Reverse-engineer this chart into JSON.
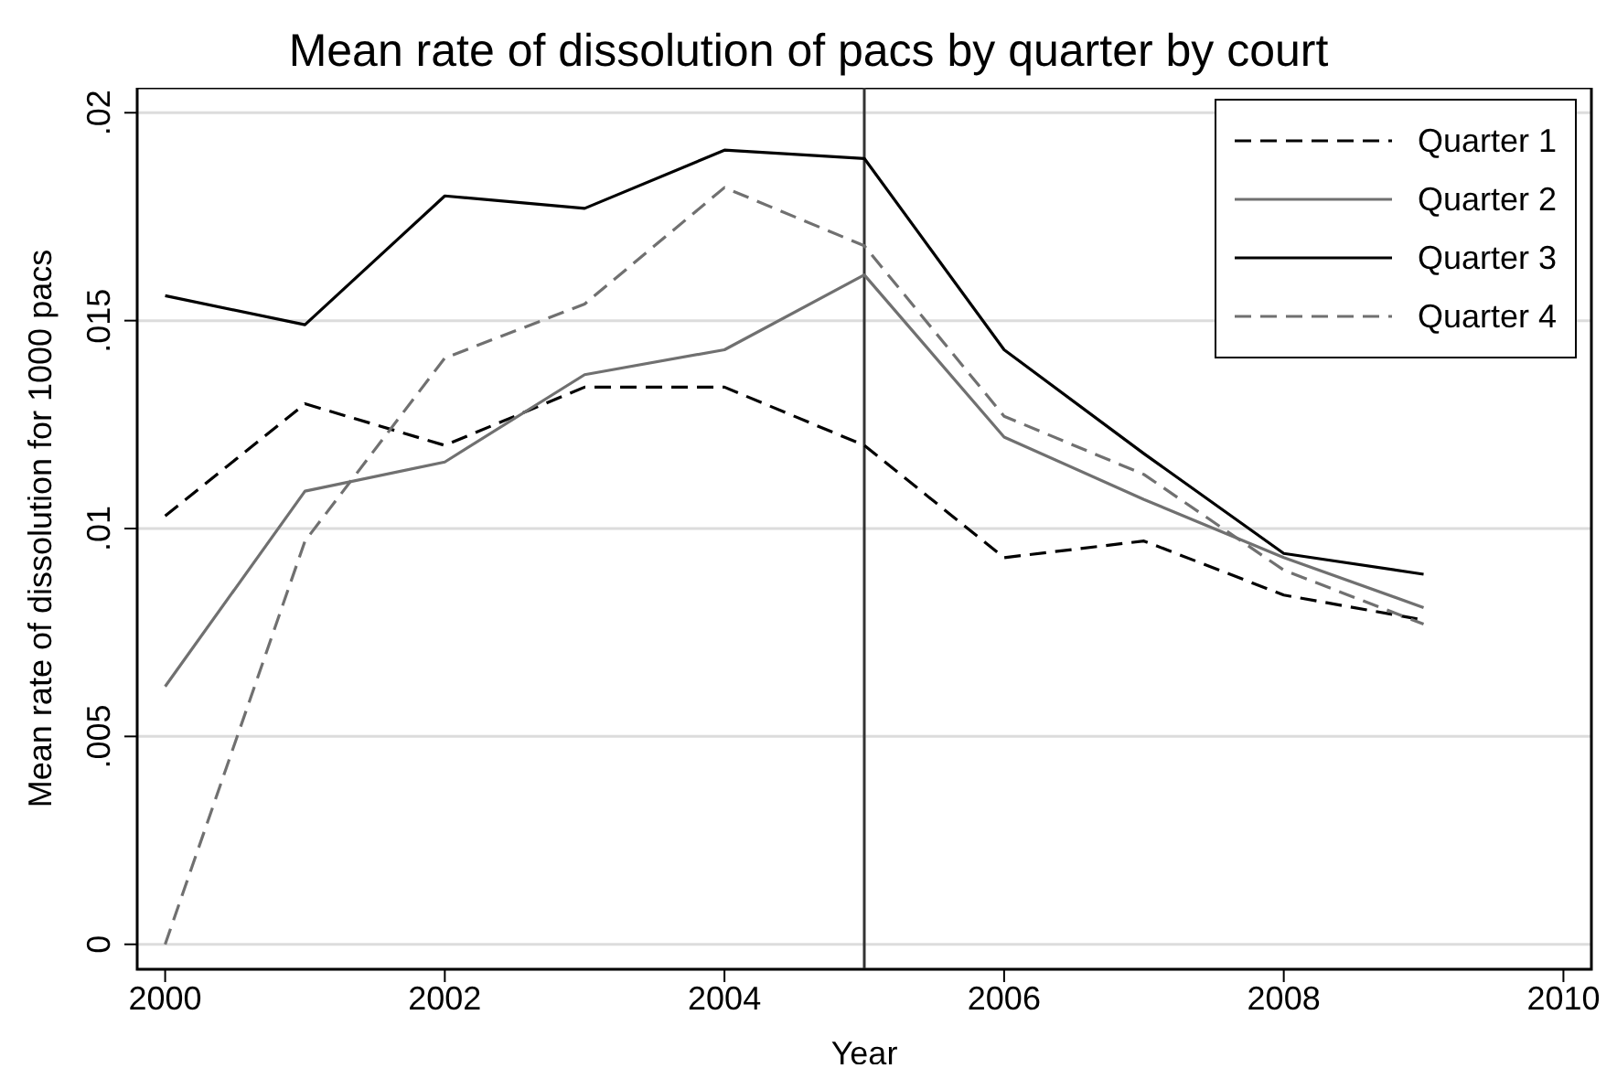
{
  "chart_data": {
    "type": "line",
    "title": "Mean rate of dissolution of pacs by quarter by court",
    "xlabel": "Year",
    "ylabel": "Mean rate of dissolution for 1000 pacs",
    "x": [
      2000,
      2001,
      2002,
      2003,
      2004,
      2005,
      2006,
      2007,
      2008,
      2009
    ],
    "series": [
      {
        "name": "Quarter 1",
        "color": "#000000",
        "line_style": "dashed",
        "values": [
          0.0103,
          0.013,
          0.012,
          0.0134,
          0.0134,
          0.012,
          0.0093,
          0.0097,
          0.0084,
          0.0078
        ]
      },
      {
        "name": "Quarter 2",
        "color": "#707070",
        "line_style": "solid",
        "values": [
          0.0062,
          0.0109,
          0.0116,
          0.0137,
          0.0143,
          0.0161,
          0.0122,
          0.0107,
          0.0093,
          0.0081
        ]
      },
      {
        "name": "Quarter 3",
        "color": "#000000",
        "line_style": "solid",
        "values": [
          0.0156,
          0.0149,
          0.018,
          0.0177,
          0.0191,
          0.0189,
          0.0143,
          0.0118,
          0.0094,
          0.0089
        ]
      },
      {
        "name": "Quarter 4",
        "color": "#707070",
        "line_style": "dashed",
        "values": [
          0,
          0.0097,
          0.0141,
          0.0154,
          0.0182,
          0.0168,
          0.0127,
          0.0113,
          0.009,
          0.0077
        ]
      }
    ],
    "xlim": [
      1999.8,
      2010.2
    ],
    "xticks": [
      2000,
      2002,
      2004,
      2006,
      2008,
      2010
    ],
    "ylim": [
      -0.0006,
      0.0206
    ],
    "yticks": [
      0,
      {
        "value": 0.005,
        "label": ".005"
      },
      {
        "value": 0.01,
        "label": ".01"
      },
      {
        "value": 0.015,
        "label": ".015"
      },
      {
        "value": 0.02,
        "label": ".02"
      }
    ],
    "ref_lines": [
      {
        "axis": "x",
        "value": 2005,
        "label": null,
        "color": "#333333"
      }
    ],
    "grid": "y",
    "legend": "top right",
    "marker": "none"
  }
}
